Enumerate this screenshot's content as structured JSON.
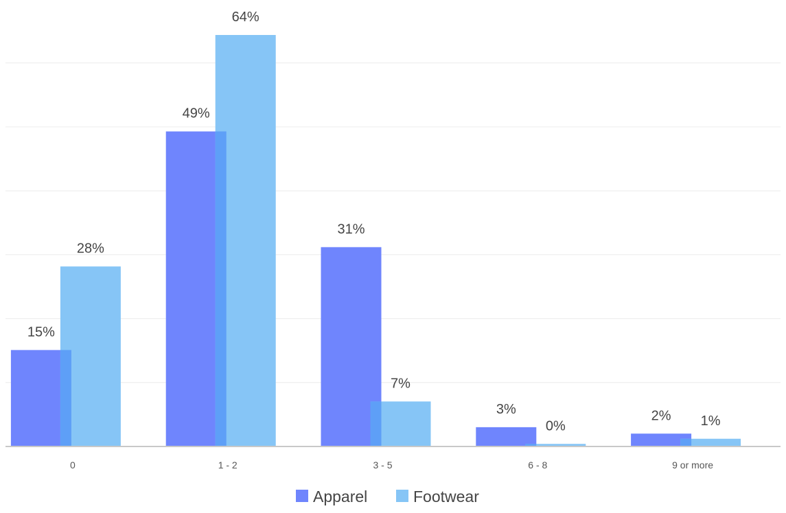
{
  "chart_data": {
    "type": "bar",
    "title": "",
    "xlabel": "",
    "ylabel": "",
    "categories": [
      "0",
      "1 - 2",
      "3 - 5",
      "6 - 8",
      "9 or more"
    ],
    "series": [
      {
        "name": "Apparel",
        "values": [
          15,
          49,
          31,
          3,
          2
        ],
        "labels": [
          "15%",
          "49%",
          "31%",
          "3%",
          "2%"
        ],
        "color": "#6f85fd"
      },
      {
        "name": "Footwear",
        "values": [
          28,
          64,
          7,
          0.4,
          1.2
        ],
        "labels": [
          "28%",
          "64%",
          "7%",
          "0%",
          "1%"
        ],
        "color": "#86c5f6"
      }
    ],
    "ylim": [
      0,
      64
    ],
    "grid": true,
    "legend": "bottom-center",
    "overlap_color": "#5e9ff7"
  }
}
